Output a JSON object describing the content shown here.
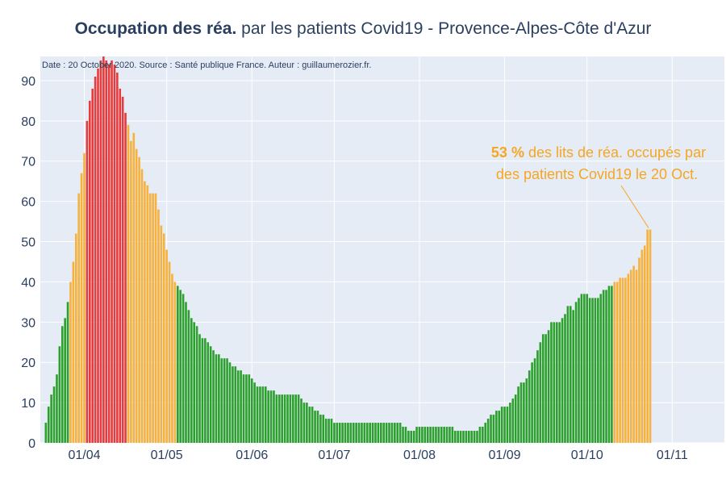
{
  "title": {
    "bold": "Occupation des réa.",
    "rest": " par les patients Covid19 - Provence-Alpes-Côte d'Azur"
  },
  "source_note": "Date : 20 October 2020. Source : Santé publique France. Auteur : guillaumerozier.fr.",
  "annotation": {
    "value": "53  %",
    "line1_rest": " des lits de réa. occupés par",
    "line2": "des patients Covid19 le 20 Oct."
  },
  "colors": {
    "plot_bg": "#e5ecf6",
    "green": "#2ca02c",
    "orange": "#f7b13d",
    "red": "#e83a3a",
    "annotation": "#f5a623"
  },
  "chart_data": {
    "type": "bar",
    "x_start": "2020-03-18",
    "x_end": "2020-10-20",
    "x_range": [
      "2020-03-16",
      "2020-11-20"
    ],
    "ylim": [
      0,
      96
    ],
    "yticks": [
      0,
      10,
      20,
      30,
      40,
      50,
      60,
      70,
      80,
      90
    ],
    "xticks": [
      {
        "date": "2020-04-01",
        "label": "01/04"
      },
      {
        "date": "2020-05-01",
        "label": "01/05"
      },
      {
        "date": "2020-06-01",
        "label": "01/06"
      },
      {
        "date": "2020-07-01",
        "label": "01/07"
      },
      {
        "date": "2020-08-01",
        "label": "01/08"
      },
      {
        "date": "2020-09-01",
        "label": "01/09"
      },
      {
        "date": "2020-10-01",
        "label": "01/10"
      },
      {
        "date": "2020-11-01",
        "label": "01/11"
      }
    ],
    "color_rule": {
      "orange_from": 40,
      "red_from": 80
    },
    "values": [
      5,
      9,
      12,
      14,
      17,
      24,
      29,
      31,
      35,
      40,
      45,
      52,
      62,
      67,
      72,
      80,
      85,
      88,
      91,
      93,
      95,
      96,
      95,
      94,
      95,
      94,
      92,
      88,
      86,
      82,
      79,
      75,
      77,
      73,
      71,
      68,
      65,
      64,
      62,
      62,
      62,
      58,
      54,
      52,
      48,
      45,
      42,
      40,
      39,
      38,
      37,
      35,
      33,
      31,
      30,
      29,
      27,
      26,
      26,
      25,
      24,
      23,
      22,
      22,
      21,
      21,
      21,
      20,
      19,
      19,
      18,
      18,
      17,
      17,
      17,
      16,
      15,
      14,
      14,
      14,
      14,
      13,
      13,
      13,
      12,
      12,
      12,
      12,
      12,
      12,
      12,
      12,
      12,
      11,
      10,
      10,
      9,
      9,
      8,
      8,
      7,
      7,
      6,
      6,
      6,
      5,
      5,
      5,
      5,
      5,
      5,
      5,
      5,
      5,
      5,
      5,
      5,
      5,
      5,
      5,
      5,
      5,
      5,
      5,
      5,
      5,
      5,
      5,
      5,
      5,
      4,
      4,
      3,
      3,
      3,
      4,
      4,
      4,
      4,
      4,
      4,
      4,
      4,
      4,
      4,
      4,
      4,
      4,
      4,
      3,
      3,
      3,
      3,
      3,
      3,
      3,
      3,
      3,
      4,
      4,
      5,
      6,
      7,
      7,
      8,
      8,
      9,
      9,
      9,
      10,
      11,
      12,
      14,
      15,
      15,
      16,
      18,
      20,
      21,
      23,
      25,
      27,
      27,
      28,
      30,
      30,
      30,
      30,
      31,
      32,
      34,
      34,
      33,
      35,
      36,
      37,
      37,
      37,
      36,
      36,
      36,
      36,
      37,
      38,
      38,
      39,
      39,
      40,
      40,
      41,
      41,
      41,
      42,
      43,
      44,
      43,
      46,
      48,
      49,
      53,
      53
    ]
  }
}
